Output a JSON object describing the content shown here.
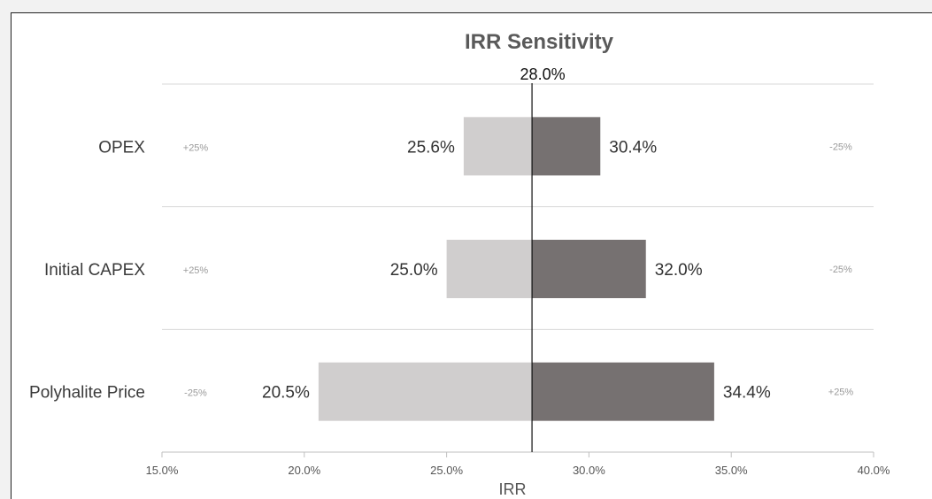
{
  "chart_data": {
    "type": "bar",
    "title": "IRR Sensitivity",
    "xlabel": "IRR",
    "ylabel": "",
    "base_value": 28.0,
    "base_label": "28.0%",
    "xlim": [
      15.0,
      40.0
    ],
    "x_ticks": [
      15.0,
      20.0,
      25.0,
      30.0,
      35.0,
      40.0
    ],
    "x_tick_labels": [
      "15.0%",
      "20.0%",
      "25.0%",
      "30.0%",
      "35.0%",
      "40.0%"
    ],
    "categories": [
      "OPEX",
      "Initial CAPEX",
      "Polyhalite Price"
    ],
    "series": [
      {
        "values": [
          25.6,
          25.0,
          20.5
        ],
        "labels": [
          "25.6%",
          "25.0%",
          "20.5%"
        ],
        "color": "#d0cece"
      },
      {
        "values": [
          30.4,
          32.0,
          34.4
        ],
        "labels": [
          "30.4%",
          "32.0%",
          "34.4%"
        ],
        "color": "#767171"
      }
    ],
    "sensitivity_left": [
      "+25%",
      "+25%",
      "-25%"
    ],
    "sensitivity_right": [
      "-25%",
      "-25%",
      "+25%"
    ],
    "gridlines": true
  }
}
